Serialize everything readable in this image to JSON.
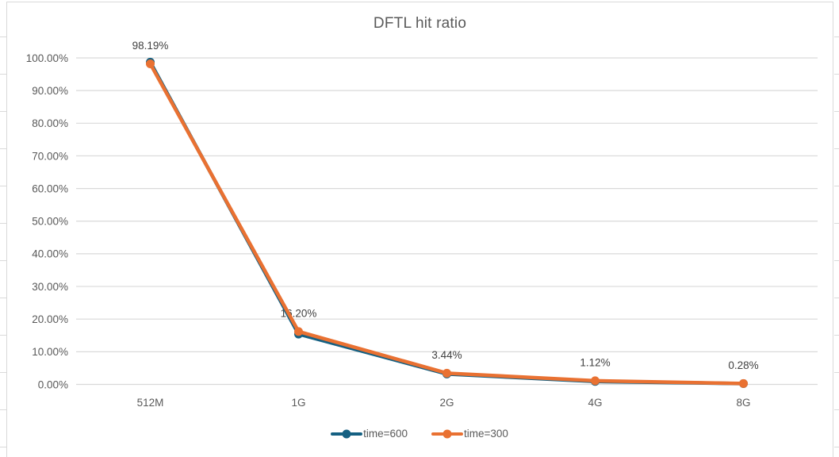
{
  "chart_data": {
    "type": "line",
    "title": "DFTL hit ratio",
    "categories": [
      "512M",
      "1G",
      "2G",
      "4G",
      "8G"
    ],
    "series": [
      {
        "name": "time=600",
        "color": "#156082",
        "values": [
          98.7,
          15.4,
          3.2,
          0.9,
          0.25
        ]
      },
      {
        "name": "time=300",
        "color": "#E97132",
        "values": [
          98.19,
          16.2,
          3.44,
          1.12,
          0.28
        ]
      }
    ],
    "data_labels": [
      "98.19%",
      "16.20%",
      "3.44%",
      "1.12%",
      "0.28%"
    ],
    "y_tick_labels": [
      "0.00%",
      "10.00%",
      "20.00%",
      "30.00%",
      "40.00%",
      "50.00%",
      "60.00%",
      "70.00%",
      "80.00%",
      "90.00%",
      "100.00%"
    ],
    "ylim": [
      0,
      100
    ],
    "grid": true,
    "legend_position": "bottom",
    "marker": "circle",
    "colors": {
      "gridline": "#D9D9D9",
      "axis_text": "#595959",
      "title_text": "#595959",
      "data_label_text": "#404040",
      "background": "#FFFFFF"
    }
  }
}
